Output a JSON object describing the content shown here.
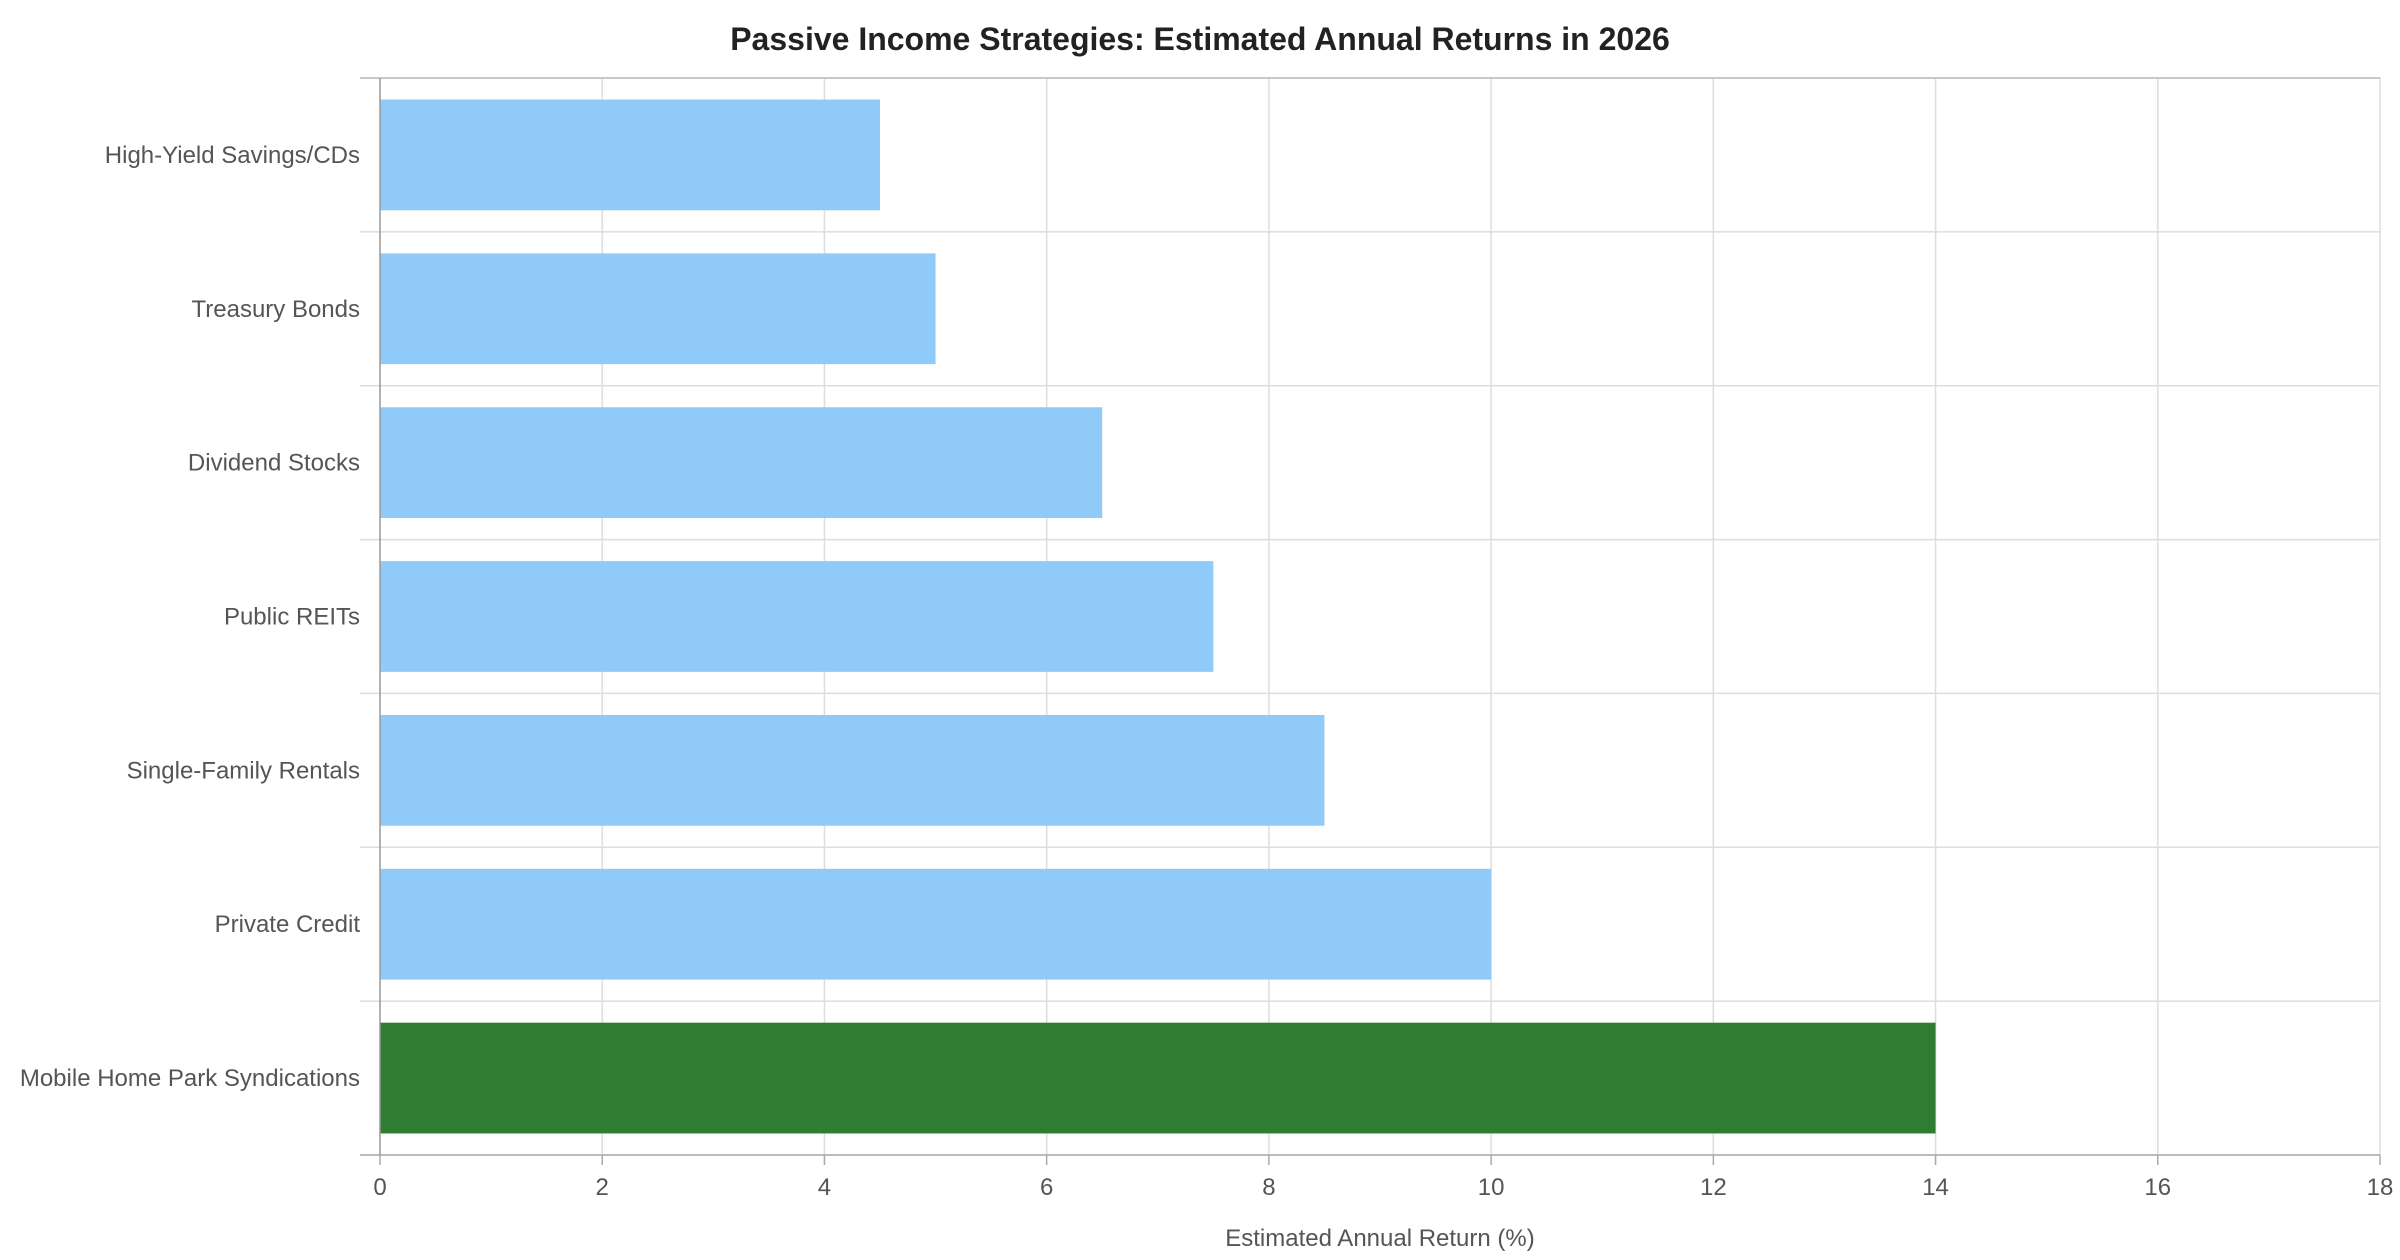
{
  "chart_data": {
    "type": "bar",
    "orientation": "horizontal",
    "title": "Passive Income Strategies: Estimated Annual Returns in 2026",
    "xlabel": "Estimated Annual Return (%)",
    "ylabel": "",
    "xlim": [
      0,
      18
    ],
    "xticks": [
      "0",
      "2",
      "4",
      "6",
      "8",
      "10",
      "12",
      "14",
      "16",
      "18"
    ],
    "grid": true,
    "categories": [
      "High-Yield Savings/CDs",
      "Treasury Bonds",
      "Dividend Stocks",
      "Public REITs",
      "Single-Family Rentals",
      "Private Credit",
      "Mobile Home Park Syndications"
    ],
    "values": [
      4.5,
      5,
      6.5,
      7.5,
      8.5,
      10,
      14
    ],
    "bar_colors": [
      "#90caf9",
      "#90caf9",
      "#90caf9",
      "#90caf9",
      "#90caf9",
      "#90caf9",
      "#2e7d32"
    ]
  }
}
